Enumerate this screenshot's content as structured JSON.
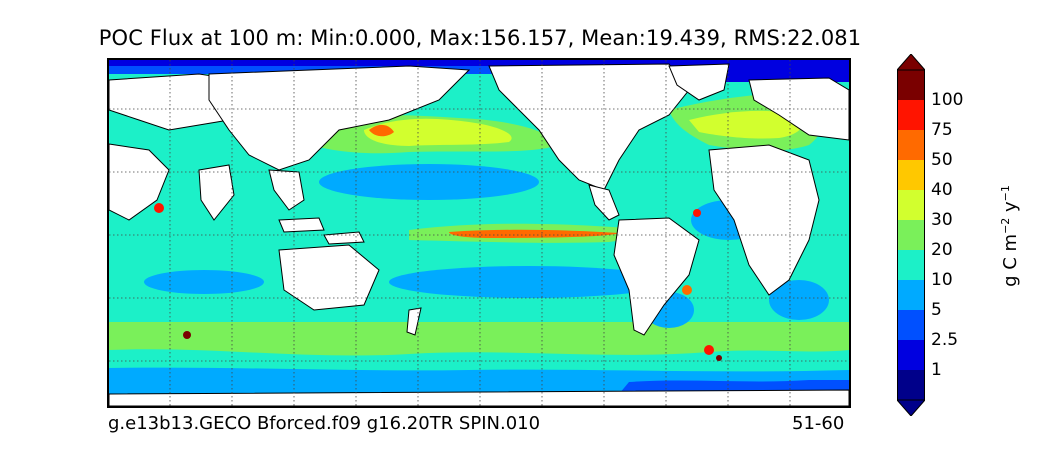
{
  "title": "POC Flux at 100 m: Min:0.000, Max:156.157, Mean:19.439, RMS:22.081",
  "footer": {
    "run_name": "g.e13b13.GECO Bforced.f09 g16.20TR SPIN.010",
    "years": "51-60"
  },
  "colorbar": {
    "unit_main": "g C m",
    "unit_exp1": "−2",
    "unit_mid": " y",
    "unit_exp2": "−1",
    "ticks": [
      "100",
      "75",
      "50",
      "40",
      "30",
      "20",
      "10",
      "5",
      "2.5",
      "1"
    ],
    "colors": [
      "#7a0000",
      "#ff1400",
      "#ff6a00",
      "#ffc800",
      "#d2ff2e",
      "#7af05a",
      "#1cf0c8",
      "#00aaff",
      "#0050ff",
      "#0000e0",
      "#00008a"
    ],
    "extend_max_color": "#7a0000",
    "extend_min_color": "#00008a"
  },
  "map": {
    "land_color": "#ffffff",
    "coast_color": "#000000",
    "grid_style": "dotted"
  }
}
